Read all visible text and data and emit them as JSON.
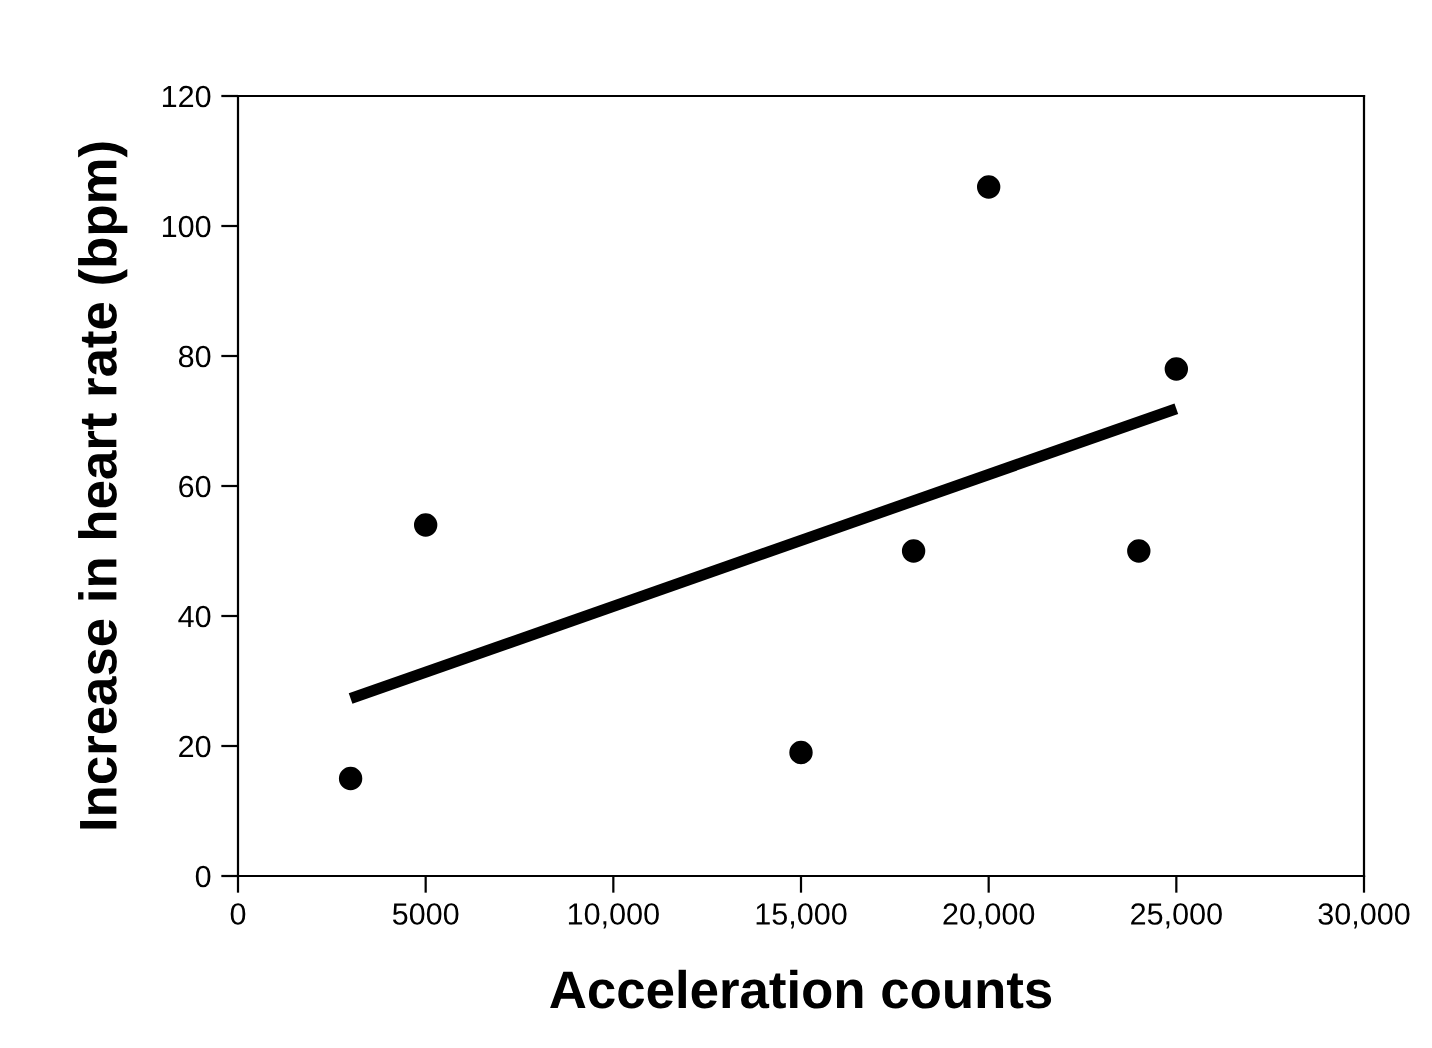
{
  "chart_data": {
    "type": "scatter",
    "xlabel": "Acceleration counts",
    "ylabel": "Increase in heart rate (bpm)",
    "xlim": [
      0,
      30000
    ],
    "ylim": [
      0,
      120
    ],
    "xticks": [
      0,
      5000,
      {
        "value": 10000,
        "label": "10,000"
      },
      {
        "value": 15000,
        "label": "15,000"
      },
      {
        "value": 20000,
        "label": "20,000"
      },
      {
        "value": 25000,
        "label": "25,000"
      },
      {
        "value": 30000,
        "label": "30,000"
      }
    ],
    "yticks": [
      0,
      20,
      40,
      60,
      80,
      100,
      120
    ],
    "grid": false,
    "series": [
      {
        "marker": "circle",
        "color": "#000000",
        "x": [
          3000,
          5000,
          15000,
          18000,
          20000,
          24000,
          25000
        ],
        "values": [
          15,
          54,
          19,
          50,
          106,
          50,
          78
        ]
      },
      {
        "type": "line",
        "color": "#000000",
        "line_style": "solid",
        "marker": "none",
        "x": [
          3000,
          25000
        ],
        "values": [
          27.3,
          71.9
        ]
      }
    ]
  }
}
